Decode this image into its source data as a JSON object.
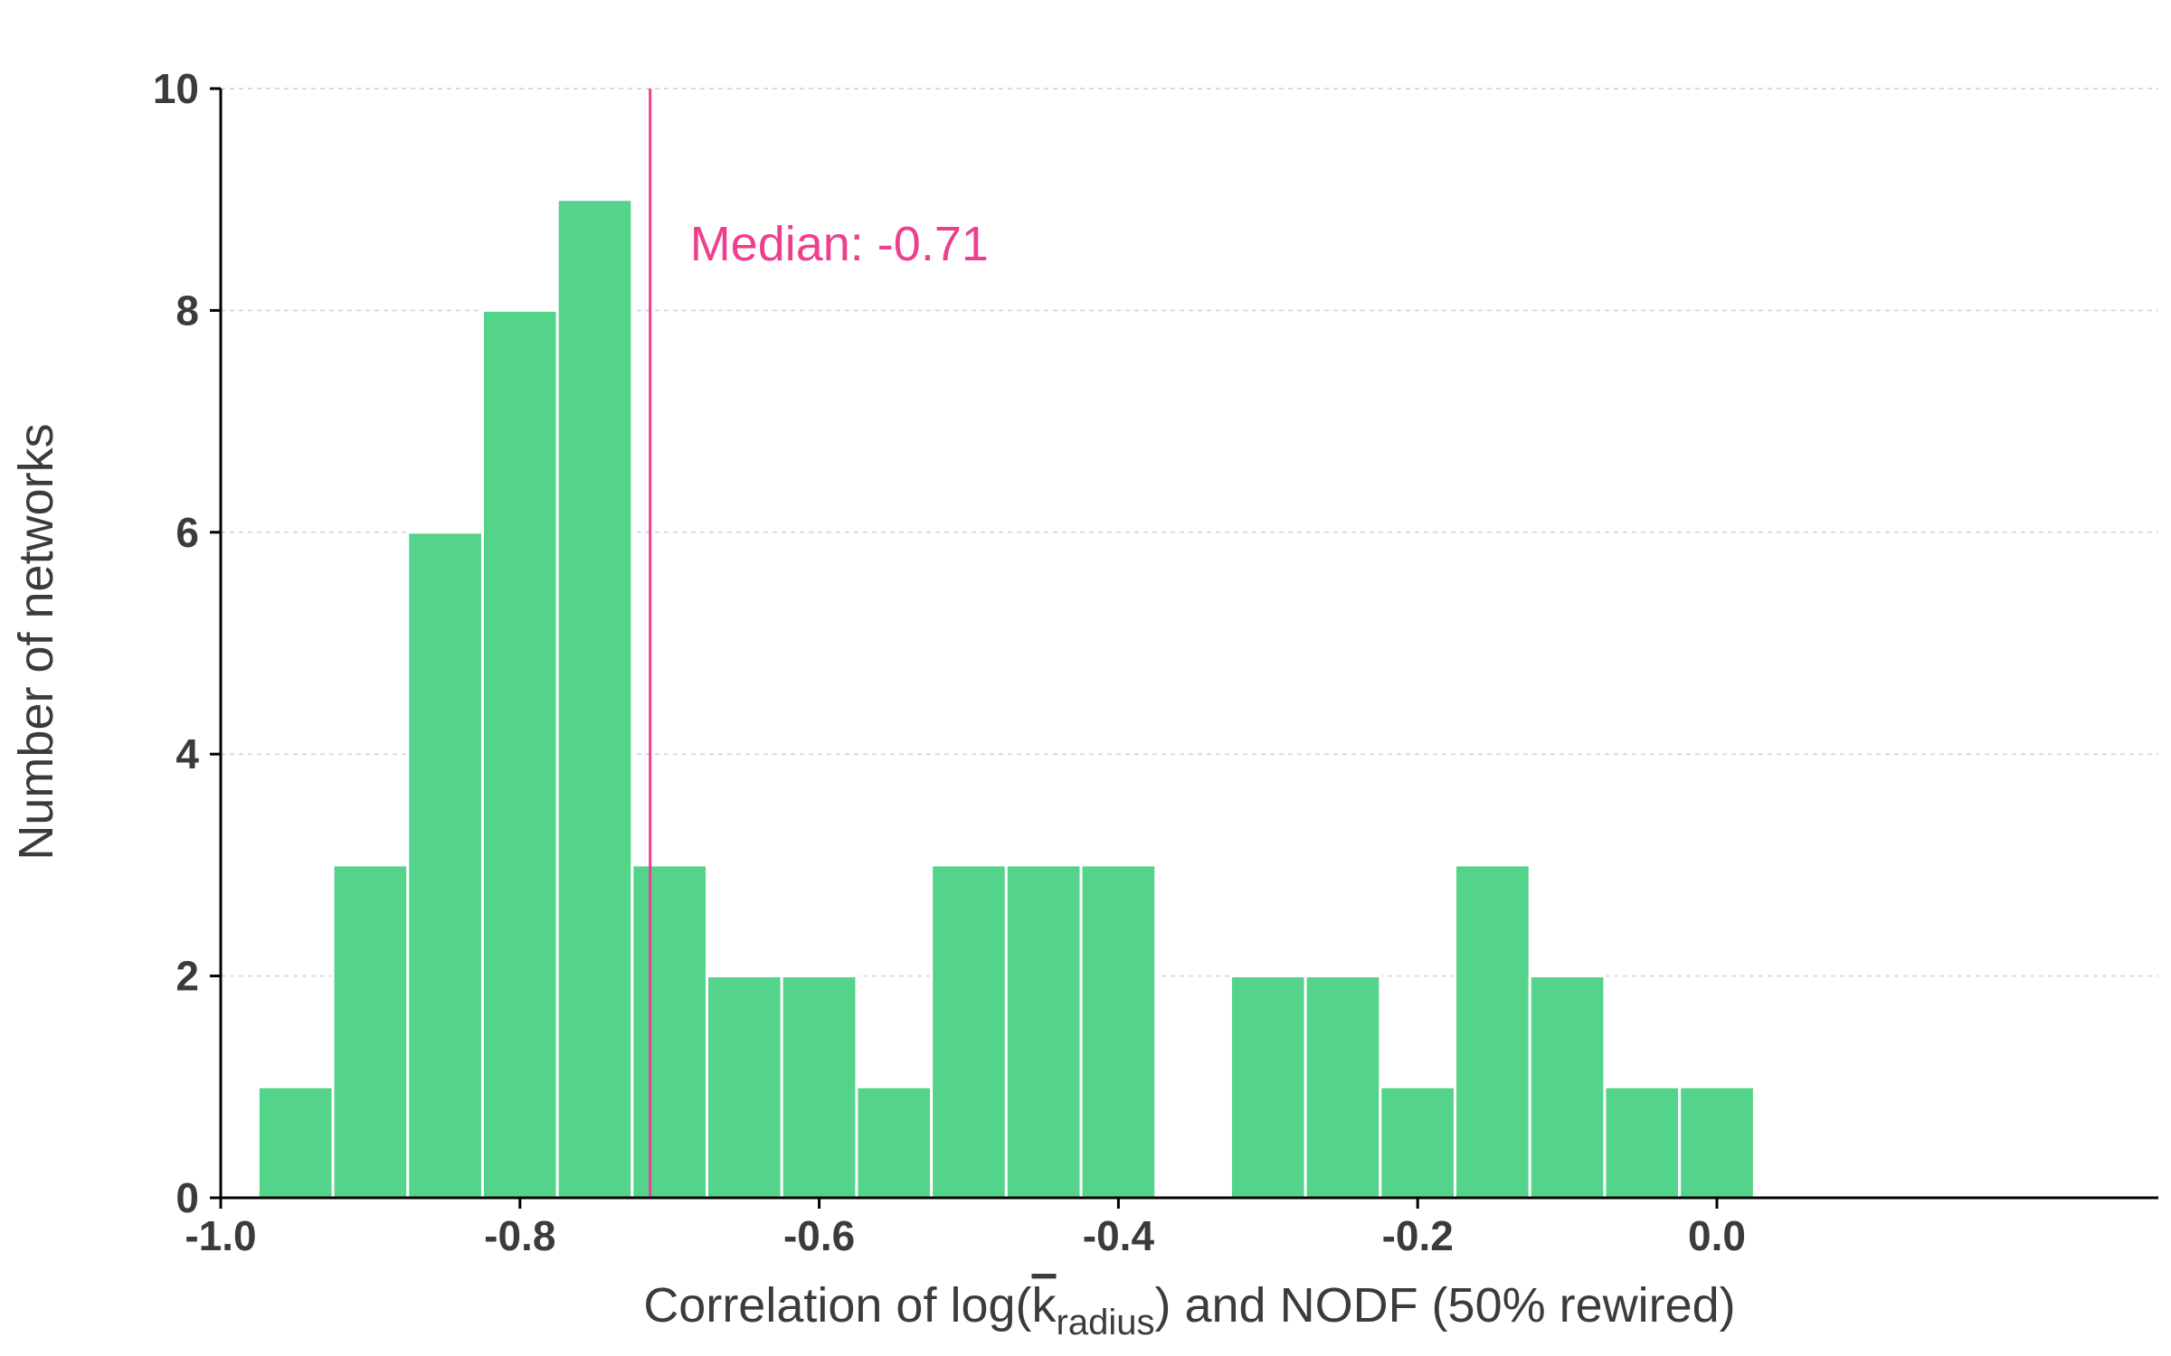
{
  "chart_data": {
    "type": "bar",
    "subtype": "histogram",
    "bin_width": 0.05,
    "bins": [
      {
        "x0": -0.975,
        "x1": -0.925,
        "count": 1
      },
      {
        "x0": -0.925,
        "x1": -0.875,
        "count": 3
      },
      {
        "x0": -0.875,
        "x1": -0.825,
        "count": 6
      },
      {
        "x0": -0.825,
        "x1": -0.775,
        "count": 8
      },
      {
        "x0": -0.775,
        "x1": -0.725,
        "count": 9
      },
      {
        "x0": -0.725,
        "x1": -0.675,
        "count": 3
      },
      {
        "x0": -0.675,
        "x1": -0.625,
        "count": 2
      },
      {
        "x0": -0.625,
        "x1": -0.575,
        "count": 2
      },
      {
        "x0": -0.575,
        "x1": -0.525,
        "count": 1
      },
      {
        "x0": -0.525,
        "x1": -0.475,
        "count": 3
      },
      {
        "x0": -0.475,
        "x1": -0.425,
        "count": 3
      },
      {
        "x0": -0.425,
        "x1": -0.375,
        "count": 3
      },
      {
        "x0": -0.375,
        "x1": -0.325,
        "count": 0
      },
      {
        "x0": -0.325,
        "x1": -0.275,
        "count": 2
      },
      {
        "x0": -0.275,
        "x1": -0.225,
        "count": 2
      },
      {
        "x0": -0.225,
        "x1": -0.175,
        "count": 1
      },
      {
        "x0": -0.175,
        "x1": -0.125,
        "count": 3
      },
      {
        "x0": -0.125,
        "x1": -0.075,
        "count": 2
      },
      {
        "x0": -0.075,
        "x1": -0.025,
        "count": 1
      },
      {
        "x0": -0.025,
        "x1": 0.025,
        "count": 1
      }
    ],
    "xlim": [
      -1.0,
      0.1
    ],
    "ylim": [
      0,
      10
    ],
    "xticks": [
      -1.0,
      -0.8,
      -0.6,
      -0.4,
      -0.2,
      0.0
    ],
    "xtick_labels": [
      "-1.0",
      "-0.8",
      "-0.6",
      "-0.4",
      "-0.2",
      "0.0"
    ],
    "yticks": [
      0,
      2,
      4,
      6,
      8,
      10
    ],
    "ytick_labels": [
      "0",
      "2",
      "4",
      "6",
      "8",
      "10"
    ],
    "xlabel": {
      "prefix": "Correlation of log(",
      "k": "k",
      "sub": "radius",
      "suffix": ") and NODF (50% rewired)"
    },
    "ylabel": "Number of networks",
    "grid": "horizontal-dashed",
    "median": {
      "value": -0.713,
      "label": "Median: -0.71"
    },
    "colors": {
      "bar": "#54d38b",
      "median": "#ee3f8f",
      "text": "#3b3b3b",
      "grid": "#d9d9d9"
    }
  }
}
